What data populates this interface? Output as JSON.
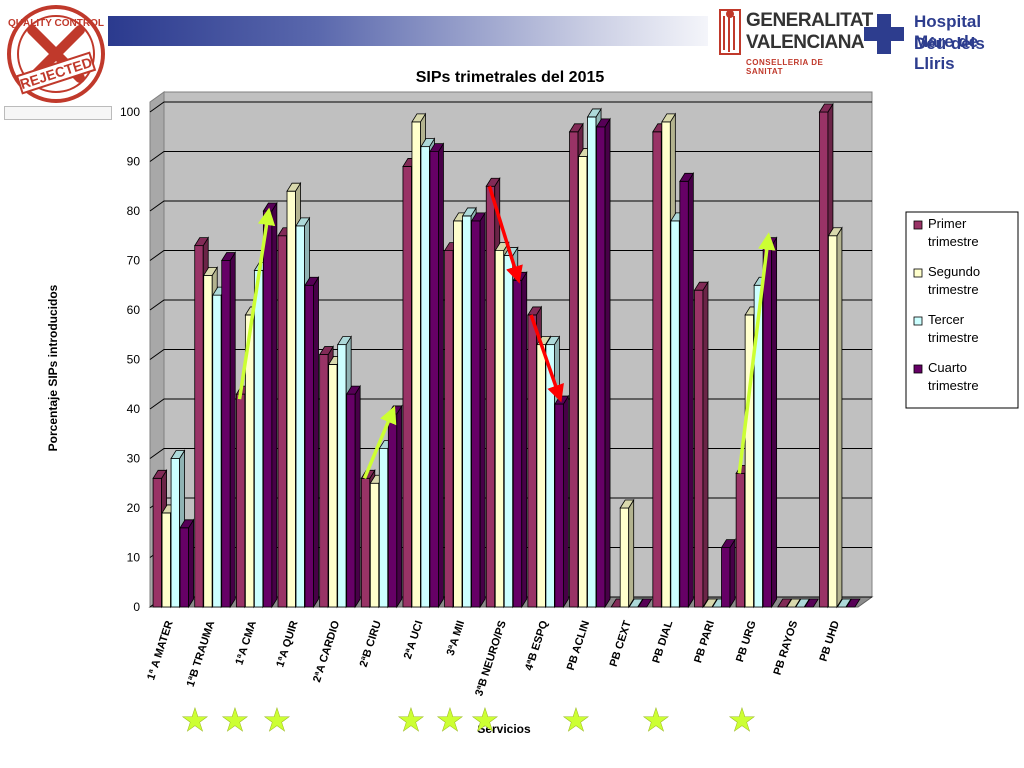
{
  "header": {
    "stamp_text_top": "QUALITY CONTROL",
    "stamp_text_bottom": "REJECTED",
    "gva_name_line1": "GENERALITAT",
    "gva_name_line2": "VALENCIANA",
    "gva_dept": "CONSELLERIA DE SANITAT",
    "hospital_line1": "Hospital Mare de",
    "hospital_line2": "Déu dels Lliris"
  },
  "chart_data": {
    "type": "bar",
    "title": "SIPs trimetrales del 2015",
    "xlabel": "Servicios",
    "ylabel": "Porcentaje SIPs introducidos",
    "ylim": [
      0,
      100
    ],
    "yticks": [
      0,
      10,
      20,
      30,
      40,
      50,
      60,
      70,
      80,
      90,
      100
    ],
    "grid": true,
    "legend_position": "right",
    "categories": [
      "1ª A MATER",
      "1ªB TRAUMA",
      "1ªA CMA",
      "1ªA QUIR",
      "2ªA CARDIO",
      "2ªB CIRU",
      "2ªA UCI",
      "3ªA MII",
      "3ªB NEURO/PS",
      "4ªB ESPQ",
      "PB ACLIN",
      "PB CEXT",
      "PB DIAL",
      "PB PARI",
      "PB URG",
      "PB RAYOS",
      "PB UHD"
    ],
    "series": [
      {
        "name": "Primer trimestre",
        "color": "#993366",
        "values": [
          26,
          73,
          43,
          75,
          51,
          26,
          89,
          72,
          85,
          59,
          96,
          0,
          96,
          64,
          27,
          0,
          100
        ]
      },
      {
        "name": "Segundo trimestre",
        "color": "#ffffcc",
        "values": [
          19,
          67,
          59,
          84,
          49,
          25,
          98,
          78,
          72,
          53,
          91,
          20,
          98,
          0,
          59,
          0,
          75
        ]
      },
      {
        "name": "Tercer trimestre",
        "color": "#ccffff",
        "values": [
          30,
          63,
          68,
          77,
          53,
          32,
          93,
          79,
          71,
          53,
          99,
          0,
          78,
          0,
          65,
          0,
          0
        ]
      },
      {
        "name": "Cuarto trimestre",
        "color": "#660066",
        "values": [
          16,
          70,
          80,
          65,
          43,
          39,
          92,
          78,
          66,
          41,
          97,
          0,
          86,
          12,
          73,
          0,
          0
        ]
      }
    ],
    "trend_arrows": [
      {
        "category_index": 2,
        "from_value": 42,
        "to_value": 80,
        "color": "#ccff33"
      },
      {
        "category_index": 5,
        "from_value": 26,
        "to_value": 40,
        "color": "#ccff33"
      },
      {
        "category_index": 8,
        "from_value": 85,
        "to_value": 66,
        "color": "#ff0000"
      },
      {
        "category_index": 9,
        "from_value": 59,
        "to_value": 42,
        "color": "#ff0000"
      },
      {
        "category_index": 14,
        "from_value": 27,
        "to_value": 75,
        "color": "#ccff33"
      }
    ],
    "star_color": "#ccff33",
    "stars": [
      "★",
      "★",
      "★",
      "★",
      "★",
      "★",
      "★",
      "★",
      "★"
    ]
  }
}
